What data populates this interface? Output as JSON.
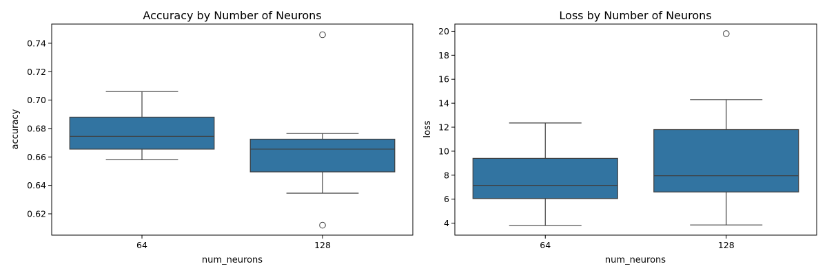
{
  "chart_data": [
    {
      "type": "box",
      "title": "Accuracy by Number of Neurons",
      "xlabel": "num_neurons",
      "ylabel": "accuracy",
      "categories": [
        "64",
        "128"
      ],
      "ylim": [
        0.605,
        0.7535
      ],
      "yticks": [
        0.62,
        0.64,
        0.66,
        0.68,
        0.7,
        0.72,
        0.74
      ],
      "ytick_labels": [
        "0.62",
        "0.64",
        "0.66",
        "0.68",
        "0.70",
        "0.72",
        "0.74"
      ],
      "boxes": [
        {
          "category": "64",
          "whisker_low": 0.658,
          "q1": 0.6655,
          "median": 0.6745,
          "q3": 0.688,
          "whisker_high": 0.706,
          "outliers": []
        },
        {
          "category": "128",
          "whisker_low": 0.6345,
          "q1": 0.6495,
          "median": 0.6655,
          "q3": 0.6725,
          "whisker_high": 0.6765,
          "outliers": [
            0.746,
            0.612
          ]
        }
      ],
      "box_color": "#3274a1",
      "line_color": "#3f3f3f",
      "grid": false
    },
    {
      "type": "box",
      "title": "Loss by Number of Neurons",
      "xlabel": "num_neurons",
      "ylabel": "loss",
      "categories": [
        "64",
        "128"
      ],
      "ylim": [
        3.0,
        20.6
      ],
      "yticks": [
        4,
        6,
        8,
        10,
        12,
        14,
        16,
        18,
        20
      ],
      "ytick_labels": [
        "4",
        "6",
        "8",
        "10",
        "12",
        "14",
        "16",
        "18",
        "20"
      ],
      "boxes": [
        {
          "category": "64",
          "whisker_low": 3.8,
          "q1": 6.05,
          "median": 7.15,
          "q3": 9.4,
          "whisker_high": 12.35,
          "outliers": []
        },
        {
          "category": "128",
          "whisker_low": 3.85,
          "q1": 6.6,
          "median": 7.95,
          "q3": 11.8,
          "whisker_high": 14.3,
          "outliers": [
            19.8
          ]
        }
      ],
      "box_color": "#3274a1",
      "line_color": "#3f3f3f",
      "grid": false
    }
  ]
}
